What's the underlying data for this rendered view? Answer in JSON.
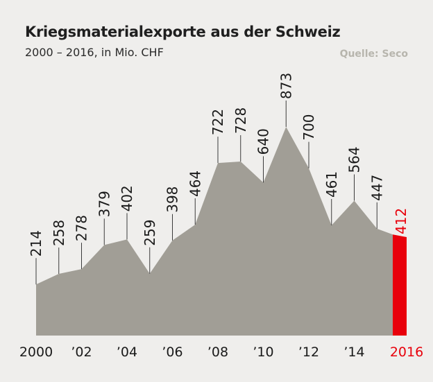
{
  "header": {
    "title": "Kriegsmaterialexporte aus der Schweiz",
    "subtitle": "2000 – 2016, in Mio. CHF",
    "source": "Quelle: Seco"
  },
  "chart_data": {
    "type": "area",
    "title": "Kriegsmaterialexporte aus der Schweiz",
    "subtitle": "2000 – 2016, in Mio. CHF",
    "x": [
      2000,
      2001,
      2002,
      2003,
      2004,
      2005,
      2006,
      2007,
      2008,
      2009,
      2010,
      2011,
      2012,
      2013,
      2014,
      2015,
      2016
    ],
    "values": [
      214,
      258,
      278,
      379,
      402,
      259,
      398,
      464,
      722,
      728,
      640,
      873,
      700,
      461,
      564,
      447,
      412
    ],
    "value_labels": [
      "214",
      "258",
      "278",
      "379",
      "402",
      "259",
      "398",
      "464",
      "722",
      "728",
      "640",
      "873",
      "700",
      "461",
      "564",
      "447",
      "412"
    ],
    "x_tick_labels": [
      {
        "year": 2000,
        "label": "2000"
      },
      {
        "year": 2002,
        "label": "’02"
      },
      {
        "year": 2004,
        "label": "’04"
      },
      {
        "year": 2006,
        "label": "’06"
      },
      {
        "year": 2008,
        "label": "’08"
      },
      {
        "year": 2010,
        "label": "’10"
      },
      {
        "year": 2012,
        "label": "’12"
      },
      {
        "year": 2014,
        "label": "’14"
      },
      {
        "year": 2016,
        "label": "2016"
      }
    ],
    "highlight_year": 2016,
    "ylim": [
      0,
      873
    ],
    "colors": {
      "area": "#a19e96",
      "highlight": "#e8000b",
      "text": "#1a1a1a",
      "leader": "#3a3a3a",
      "background": "#efeeec",
      "source": "#b7b5ad"
    }
  }
}
